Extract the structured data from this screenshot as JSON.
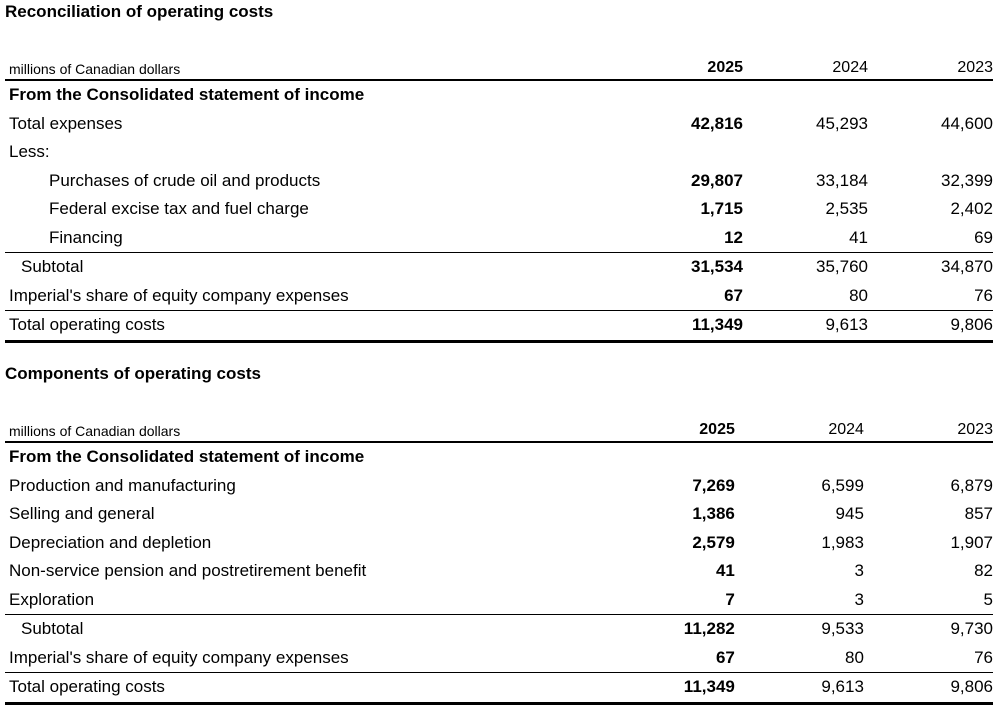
{
  "tables": [
    {
      "title": "Reconciliation of operating costs",
      "unit_label": "millions of Canadian dollars",
      "years": [
        "2025",
        "2024",
        "2023"
      ],
      "rows": [
        {
          "label": "From the Consolidated statement of income",
          "values": [
            "",
            "",
            ""
          ],
          "style": "section"
        },
        {
          "label": "Total expenses",
          "values": [
            "42,816",
            "45,293",
            "44,600"
          ],
          "style": "normal"
        },
        {
          "label": "Less:",
          "values": [
            "",
            "",
            ""
          ],
          "style": "normal"
        },
        {
          "label": "Purchases of crude oil and products",
          "values": [
            "29,807",
            "33,184",
            "32,399"
          ],
          "style": "indent2"
        },
        {
          "label": "Federal excise tax and fuel charge",
          "values": [
            "1,715",
            "2,535",
            "2,402"
          ],
          "style": "indent2"
        },
        {
          "label": "Financing",
          "values": [
            "12",
            "41",
            "69"
          ],
          "style": "indent2"
        },
        {
          "label": "Subtotal",
          "values": [
            "31,534",
            "35,760",
            "34,870"
          ],
          "style": "subtotal"
        },
        {
          "label": "Imperial's share of equity company expenses",
          "values": [
            "67",
            "80",
            "76"
          ],
          "style": "normal"
        },
        {
          "label": "Total operating costs",
          "values": [
            "11,349",
            "9,613",
            "9,806"
          ],
          "style": "total"
        }
      ]
    },
    {
      "title": "Components of operating costs",
      "unit_label": "millions of Canadian dollars",
      "years": [
        "2025",
        "2024",
        "2023"
      ],
      "rows": [
        {
          "label": "From the Consolidated statement of income",
          "values": [
            "",
            "",
            ""
          ],
          "style": "section"
        },
        {
          "label": "Production and manufacturing",
          "values": [
            "7,269",
            "6,599",
            "6,879"
          ],
          "style": "normal"
        },
        {
          "label": "Selling and general",
          "values": [
            "1,386",
            "945",
            "857"
          ],
          "style": "normal"
        },
        {
          "label": "Depreciation and depletion",
          "values": [
            "2,579",
            "1,983",
            "1,907"
          ],
          "style": "normal"
        },
        {
          "label": "Non-service pension and postretirement benefit",
          "values": [
            "41",
            "3",
            "82"
          ],
          "style": "normal"
        },
        {
          "label": "Exploration",
          "values": [
            "7",
            "3",
            "5"
          ],
          "style": "normal"
        },
        {
          "label": "Subtotal",
          "values": [
            "11,282",
            "9,533",
            "9,730"
          ],
          "style": "subtotal"
        },
        {
          "label": "Imperial's share of equity company expenses",
          "values": [
            "67",
            "80",
            "76"
          ],
          "style": "normal"
        },
        {
          "label": "Total operating costs",
          "values": [
            "11,349",
            "9,613",
            "9,806"
          ],
          "style": "total"
        }
      ]
    }
  ]
}
